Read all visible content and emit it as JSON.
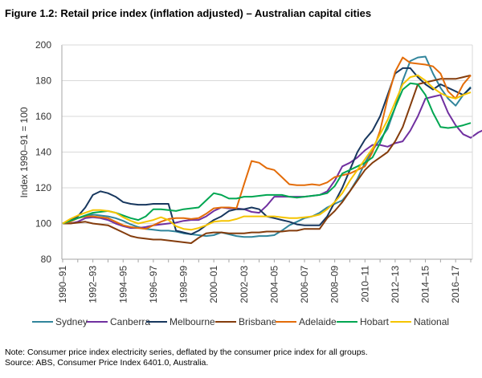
{
  "title": "Figure 1.2: Retail price index (inflation adjusted) – Australian capital cities",
  "notes": {
    "note": "Note: Consumer price index electricity series, deflated by the consumer price index for all groups.",
    "source": "Source: ABS, Consumer Price Index 6401.0, Australia."
  },
  "chart_data": {
    "type": "line",
    "title": "Retail price index (inflation adjusted) – Australian capital cities",
    "xlabel": "",
    "ylabel": "Index 1990–91 = 100",
    "ylim": [
      80,
      200
    ],
    "yticks": [
      80,
      100,
      120,
      140,
      160,
      180,
      200
    ],
    "grid": true,
    "legend_position": "bottom",
    "x_step": "half-year",
    "x_start": "1990–91",
    "x_end": "2016–17",
    "xtick_labels": [
      "1990–91",
      "1992–93",
      "1994–95",
      "1996–97",
      "1998–99",
      "2000–01",
      "2002–03",
      "2004–05",
      "2006–07",
      "2008–09",
      "2010–11",
      "2012–13",
      "2014–15",
      "2016–17"
    ],
    "series": [
      {
        "name": "Sydney",
        "color": "#31859c",
        "values": [
          100,
          101.5,
          103,
          104,
          105,
          104.5,
          104,
          103,
          101.5,
          99.5,
          98,
          97,
          96.5,
          96,
          96,
          95.5,
          94.5,
          94,
          93.5,
          93,
          93.5,
          95,
          94,
          93,
          92.5,
          92.5,
          93,
          93,
          93.5,
          96,
          99,
          101,
          103,
          104,
          106,
          109,
          111,
          113,
          118,
          125,
          134,
          141,
          147,
          153,
          165,
          180,
          191,
          193,
          193.5,
          184,
          176,
          170,
          166,
          172,
          176.5
        ]
      },
      {
        "name": "Canberra",
        "color": "#7030a0",
        "values": [
          100,
          100,
          101,
          103,
          103.5,
          103,
          102,
          100,
          98.5,
          97.5,
          97.5,
          98,
          99,
          99.5,
          100,
          100.5,
          101.5,
          102,
          102,
          104,
          107,
          109,
          108.5,
          108.5,
          108,
          106.5,
          106,
          110,
          115,
          115,
          115,
          115,
          115,
          115.5,
          116,
          118,
          124,
          132,
          134,
          137,
          141,
          144,
          144,
          143,
          145,
          146,
          152,
          160,
          170,
          171,
          172,
          162,
          155,
          150,
          148,
          151,
          153
        ]
      },
      {
        "name": "Melbourne",
        "color": "#17375e",
        "values": [
          100,
          102,
          104,
          109,
          116,
          118,
          117,
          115,
          112,
          111,
          110.5,
          110.5,
          111,
          111,
          111,
          96,
          95,
          94,
          96,
          99,
          102,
          104,
          107,
          108,
          108,
          109,
          108,
          104,
          103,
          102,
          101,
          99.5,
          99,
          99,
          99,
          104,
          112,
          120,
          130,
          140,
          147,
          152,
          160,
          172,
          184,
          187,
          187,
          182,
          178,
          175,
          178,
          176,
          174,
          172,
          176
        ]
      },
      {
        "name": "Brisbane",
        "color": "#843c0c",
        "values": [
          100,
          100,
          100.5,
          101,
          100,
          99.5,
          99,
          97,
          95,
          93,
          92,
          91.5,
          91,
          91,
          90.5,
          90,
          89.5,
          89,
          92,
          94.5,
          95,
          95,
          94.5,
          94.5,
          94.5,
          95,
          95,
          95.5,
          95.5,
          95.5,
          96,
          96,
          97,
          97,
          97,
          103,
          107,
          112,
          118,
          124,
          130,
          134,
          137,
          140,
          146,
          154,
          166,
          178,
          179,
          180,
          181,
          181,
          181,
          182,
          183
        ]
      },
      {
        "name": "Adelaide",
        "color": "#e36c09",
        "values": [
          100,
          101,
          103,
          104,
          104,
          103.5,
          103,
          101,
          99,
          98,
          97.5,
          97,
          99,
          101,
          102.5,
          103,
          103,
          102.5,
          103,
          105.5,
          108.5,
          109,
          109,
          108.6,
          122,
          135,
          134,
          131,
          130,
          126,
          122,
          121.5,
          121.5,
          122,
          121.5,
          123,
          126,
          127,
          128,
          130,
          132,
          140,
          152,
          170,
          185,
          193,
          190,
          189.5,
          189,
          188,
          184,
          174,
          170,
          178,
          183
        ]
      },
      {
        "name": "Hobart",
        "color": "#00a651",
        "values": [
          100,
          101.5,
          103,
          104.5,
          106,
          106.5,
          107,
          106,
          104.5,
          103,
          102,
          104,
          108,
          108,
          107.5,
          107,
          108,
          108.5,
          109,
          113,
          117,
          116,
          114,
          114,
          115,
          115,
          115.5,
          116,
          116,
          116,
          115,
          114.5,
          115,
          115.5,
          116,
          117,
          121,
          128,
          130,
          132,
          134,
          137,
          145,
          155,
          165,
          175,
          178.5,
          178,
          172,
          162,
          154,
          153.5,
          154,
          155,
          156.3
        ]
      },
      {
        "name": "National",
        "color": "#f5c400",
        "values": [
          100,
          102.5,
          104.5,
          106,
          107.5,
          107.5,
          107,
          106,
          103.5,
          101.5,
          100,
          101,
          102,
          103.5,
          102,
          98.5,
          97,
          96.5,
          97.5,
          99,
          101,
          101.5,
          101.5,
          102.5,
          104,
          104,
          104,
          104,
          104,
          103.5,
          103,
          103,
          103.5,
          104,
          105,
          108,
          112,
          117,
          124,
          130,
          136,
          142,
          150,
          158,
          168,
          178,
          182,
          183,
          180,
          176,
          173,
          171,
          170,
          172,
          173.5
        ]
      }
    ]
  }
}
